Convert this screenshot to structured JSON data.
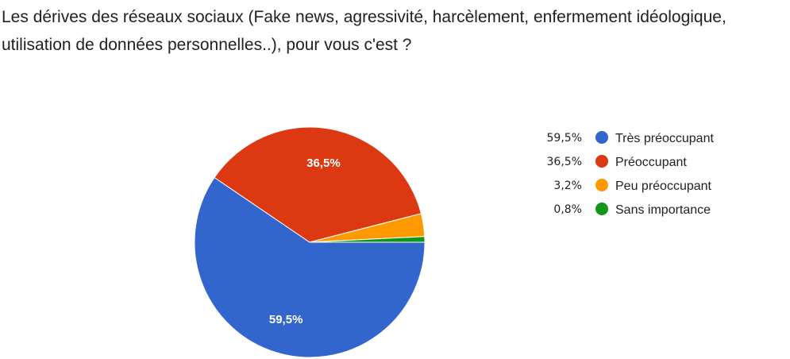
{
  "chart_data": {
    "type": "pie",
    "title": "Les dérives des réseaux sociaux (Fake news, agressivité, harcèlement, enfermement idéologique, utilisation de données personnelles..), pour vous c'est ?",
    "legend_position": "right",
    "slices": [
      {
        "name": "Très préoccupant",
        "value": 59.5,
        "label": "59,5%",
        "color": "#3366cc",
        "show_label": true
      },
      {
        "name": "Préoccupant",
        "value": 36.5,
        "label": "36,5%",
        "color": "#dc3912",
        "show_label": true
      },
      {
        "name": "Peu préoccupant",
        "value": 3.2,
        "label": "3,2%",
        "color": "#ff9900",
        "show_label": false
      },
      {
        "name": "Sans importance",
        "value": 0.8,
        "label": "0,8%",
        "color": "#109618",
        "show_label": false
      }
    ]
  }
}
